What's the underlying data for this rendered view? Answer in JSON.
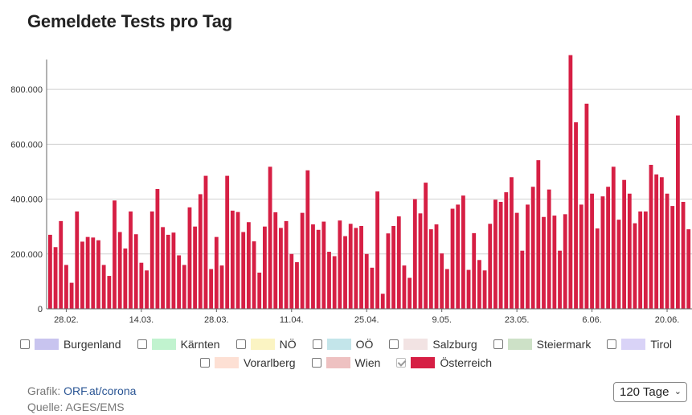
{
  "title": "Gemeldete Tests pro Tag",
  "legend": {
    "row1": [
      {
        "label": "Burgenland",
        "color": "#c8c4ef",
        "checked": false
      },
      {
        "label": "Kärnten",
        "color": "#c1f3cf",
        "checked": false
      },
      {
        "label": "NÖ",
        "color": "#fbf4c3",
        "checked": false
      },
      {
        "label": "OÖ",
        "color": "#c3e5ea",
        "checked": false
      },
      {
        "label": "Salzburg",
        "color": "#f2e3e3",
        "checked": false
      },
      {
        "label": "Steiermark",
        "color": "#cde1c7",
        "checked": false
      },
      {
        "label": "Tirol",
        "color": "#d9d3f7",
        "checked": false
      }
    ],
    "row2": [
      {
        "label": "Vorarlberg",
        "color": "#fde0d4",
        "checked": false
      },
      {
        "label": "Wien",
        "color": "#eec1c1",
        "checked": false
      },
      {
        "label": "Österreich",
        "color": "#d61f44",
        "checked": true
      }
    ]
  },
  "footer": {
    "grafik_label": "Grafik:",
    "grafik_link": "ORF.at/corona",
    "quelle": "Quelle: AGES/EMS"
  },
  "range_select": {
    "value": "120 Tage"
  },
  "chart_data": {
    "type": "bar",
    "series": [
      {
        "name": "Österreich",
        "color": "#d61f44",
        "values": [
          270000,
          225000,
          320000,
          160000,
          95000,
          355000,
          245000,
          262000,
          260000,
          250000,
          160000,
          120000,
          395000,
          280000,
          220000,
          355000,
          272000,
          168000,
          140000,
          355000,
          437000,
          298000,
          270000,
          278000,
          195000,
          160000,
          370000,
          300000,
          418000,
          485000,
          145000,
          262000,
          158000,
          485000,
          358000,
          353000,
          280000,
          316000,
          246000,
          132000,
          300000,
          518000,
          352000,
          295000,
          320000,
          200000,
          170000,
          350000,
          505000,
          308000,
          288000,
          318000,
          208000,
          192000,
          322000,
          265000,
          310000,
          295000,
          302000,
          200000,
          150000,
          428000,
          55000,
          275000,
          302000,
          337000,
          158000,
          113000,
          400000,
          348000,
          460000,
          290000,
          308000,
          202000,
          145000,
          365000,
          380000,
          413000,
          142000,
          276000,
          178000,
          140000,
          310000,
          398000,
          390000,
          425000,
          480000,
          350000,
          212000,
          380000,
          445000,
          542000,
          335000,
          435000,
          340000,
          212000,
          345000,
          925000,
          680000,
          380000,
          748000,
          420000,
          293000,
          410000,
          445000,
          518000,
          325000,
          470000,
          420000,
          312000,
          355000,
          355000,
          525000,
          490000,
          480000,
          420000,
          375000,
          705000,
          390000,
          290000
        ]
      }
    ],
    "x_tick_labels": [
      "28.02.",
      "14.03.",
      "28.03.",
      "11.04.",
      "25.04.",
      "9.05.",
      "23.05.",
      "6.06.",
      "20.06."
    ],
    "y_tick_labels": [
      "0",
      "200.000",
      "400.000",
      "600.000",
      "800.000"
    ],
    "ylim": [
      0,
      950000
    ],
    "grid": true
  }
}
